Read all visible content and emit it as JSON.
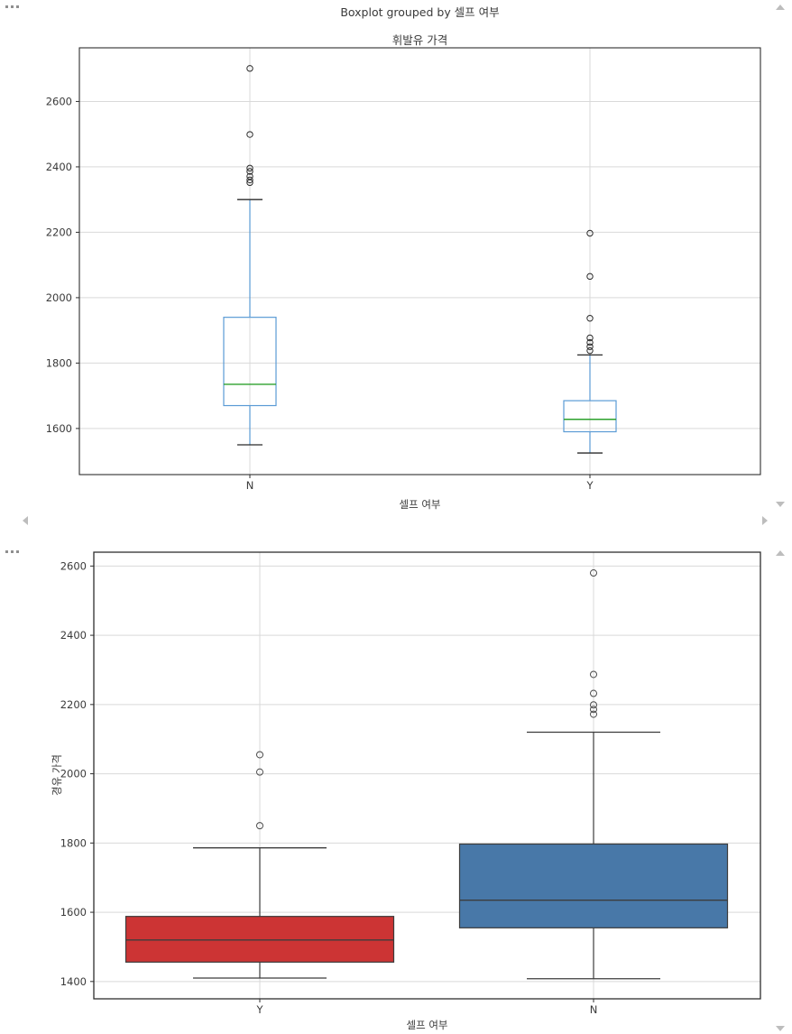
{
  "chart_data": [
    {
      "type": "boxplot",
      "suptitle": "Boxplot grouped by 셀프 여부",
      "title": "휘발유 가격",
      "xlabel": "셀프 여부",
      "ylabel": "",
      "categories": [
        "N",
        "Y"
      ],
      "ylim": [
        1459,
        2764
      ],
      "yticks": [
        1600,
        1800,
        2000,
        2200,
        2400,
        2600
      ],
      "grid": true,
      "style": {
        "grid_color": "#d9d9d9",
        "box_edge": "#5b9bd5",
        "whisker": "#5b9bd5",
        "median": "#2ca02c",
        "cap": "#2b2b2b",
        "outlier": "#2b2b2b",
        "box_fill": "none"
      },
      "series": [
        {
          "category": "N",
          "whisker_low": 1550,
          "q1": 1670,
          "median": 1735,
          "q3": 1940,
          "whisker_high": 2300,
          "outliers": [
            2352,
            2360,
            2371,
            2386,
            2396,
            2499,
            2701
          ]
        },
        {
          "category": "Y",
          "whisker_low": 1525,
          "q1": 1590,
          "median": 1628,
          "q3": 1685,
          "whisker_high": 1825,
          "outliers": [
            1838,
            1850,
            1863,
            1877,
            1937,
            2065,
            2197
          ]
        }
      ]
    },
    {
      "type": "boxplot",
      "suptitle": "",
      "title": "",
      "xlabel": "셀프 여부",
      "ylabel": "경유 가격",
      "categories": [
        "Y",
        "N"
      ],
      "ylim": [
        1350,
        2640
      ],
      "yticks": [
        1400,
        1600,
        1800,
        2000,
        2200,
        2400,
        2600
      ],
      "grid": true,
      "style": {
        "grid_color": "#d9d9d9",
        "box_edge": "#3c3c3c",
        "whisker": "#3c3c3c",
        "median": "#3c3c3c",
        "cap": "#3c3c3c",
        "outlier": "#4a4a4a"
      },
      "series": [
        {
          "category": "Y",
          "fill": "#cc3434",
          "whisker_low": 1410,
          "q1": 1456,
          "median": 1520,
          "q3": 1588,
          "whisker_high": 1786,
          "outliers": [
            1850,
            2005,
            2055
          ]
        },
        {
          "category": "N",
          "fill": "#4878a8",
          "whisker_low": 1408,
          "q1": 1555,
          "median": 1635,
          "q3": 1797,
          "whisker_high": 2120,
          "outliers": [
            2172,
            2186,
            2199,
            2232,
            2287,
            2580
          ]
        }
      ]
    }
  ],
  "ui": {
    "icons": {
      "overflow_menu": "ellipsis-icon",
      "scroll_up": "triangle-up",
      "scroll_down": "triangle-down",
      "scroll_left": "triangle-left",
      "scroll_right": "triangle-right"
    },
    "colors": {
      "scroll_arrow": "#bdbdbd",
      "ellipsis": "#8f8f8f",
      "tick_text": "#3a3a3a",
      "axes_border": "#2e2e2e"
    }
  }
}
